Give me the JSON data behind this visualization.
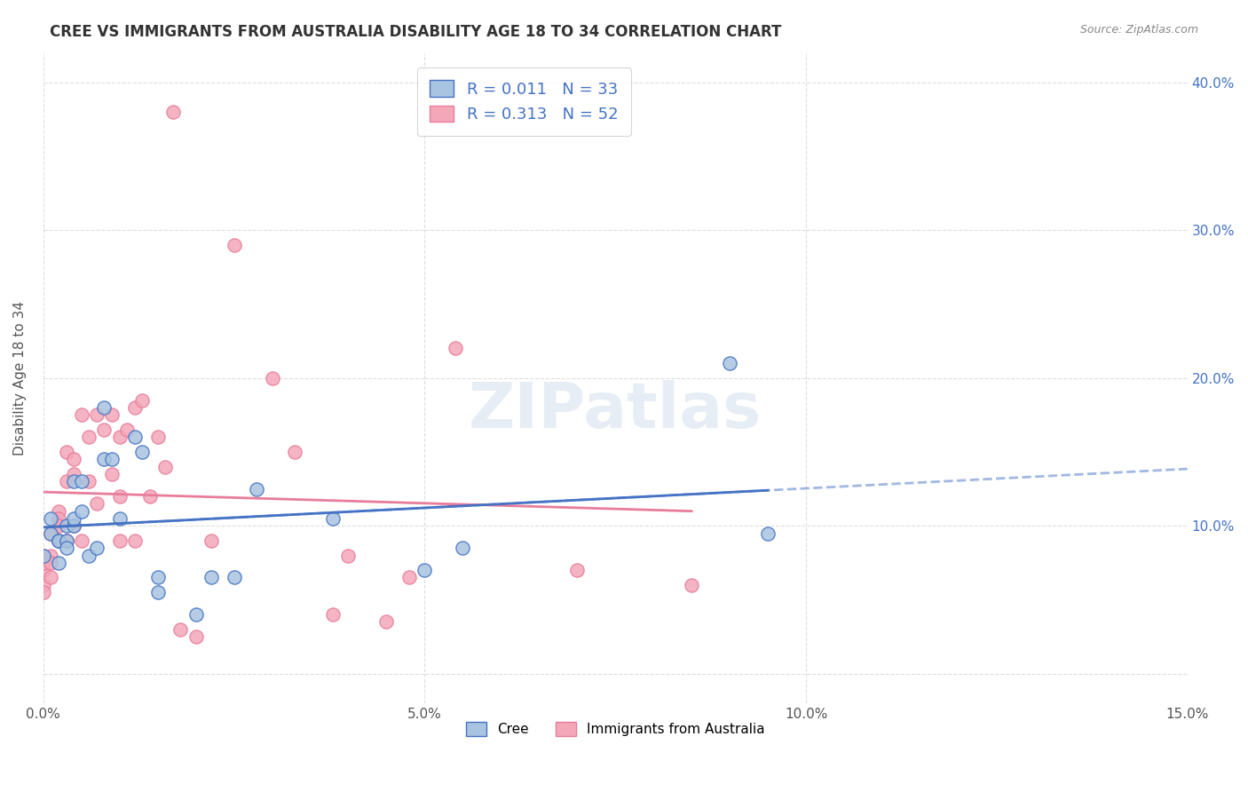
{
  "title": "CREE VS IMMIGRANTS FROM AUSTRALIA DISABILITY AGE 18 TO 34 CORRELATION CHART",
  "source": "Source: ZipAtlas.com",
  "ylabel": "Disability Age 18 to 34",
  "xlim": [
    0.0,
    0.15
  ],
  "ylim": [
    -0.02,
    0.42
  ],
  "yticks": [
    0.0,
    0.1,
    0.2,
    0.3,
    0.4
  ],
  "xticks": [
    0.0,
    0.05,
    0.1,
    0.15
  ],
  "xtick_labels": [
    "0.0%",
    "5.0%",
    "10.0%",
    "15.0%"
  ],
  "ytick_labels": [
    "",
    "10.0%",
    "20.0%",
    "30.0%",
    "40.0%"
  ],
  "cree_R": "0.011",
  "cree_N": "33",
  "aus_R": "0.313",
  "aus_N": "52",
  "cree_color": "#a8c4e0",
  "aus_color": "#f4a7b9",
  "cree_line_color": "#4472c4",
  "aus_line_color": "#e87d9a",
  "background_color": "#ffffff",
  "grid_color": "#d0d0d0",
  "cree_x": [
    0.0,
    0.001,
    0.001,
    0.002,
    0.002,
    0.002,
    0.003,
    0.003,
    0.003,
    0.004,
    0.004,
    0.004,
    0.005,
    0.005,
    0.006,
    0.007,
    0.008,
    0.008,
    0.009,
    0.01,
    0.012,
    0.013,
    0.015,
    0.015,
    0.02,
    0.022,
    0.025,
    0.028,
    0.038,
    0.05,
    0.055,
    0.09,
    0.095
  ],
  "cree_y": [
    0.08,
    0.095,
    0.105,
    0.075,
    0.09,
    0.09,
    0.1,
    0.09,
    0.085,
    0.13,
    0.1,
    0.105,
    0.11,
    0.13,
    0.08,
    0.085,
    0.145,
    0.18,
    0.145,
    0.105,
    0.16,
    0.15,
    0.065,
    0.055,
    0.04,
    0.065,
    0.065,
    0.125,
    0.105,
    0.07,
    0.085,
    0.21,
    0.095
  ],
  "aus_x": [
    0.0,
    0.0,
    0.0,
    0.0,
    0.0,
    0.001,
    0.001,
    0.001,
    0.001,
    0.002,
    0.002,
    0.002,
    0.002,
    0.003,
    0.003,
    0.003,
    0.004,
    0.004,
    0.004,
    0.005,
    0.005,
    0.006,
    0.006,
    0.007,
    0.007,
    0.008,
    0.009,
    0.009,
    0.01,
    0.01,
    0.01,
    0.011,
    0.012,
    0.012,
    0.013,
    0.014,
    0.015,
    0.016,
    0.017,
    0.018,
    0.02,
    0.022,
    0.025,
    0.03,
    0.033,
    0.038,
    0.04,
    0.045,
    0.048,
    0.054,
    0.07,
    0.085
  ],
  "aus_y": [
    0.07,
    0.08,
    0.075,
    0.06,
    0.055,
    0.095,
    0.08,
    0.075,
    0.065,
    0.11,
    0.105,
    0.1,
    0.09,
    0.15,
    0.13,
    0.09,
    0.145,
    0.135,
    0.1,
    0.175,
    0.09,
    0.16,
    0.13,
    0.175,
    0.115,
    0.165,
    0.175,
    0.135,
    0.16,
    0.12,
    0.09,
    0.165,
    0.18,
    0.09,
    0.185,
    0.12,
    0.16,
    0.14,
    0.38,
    0.03,
    0.025,
    0.09,
    0.29,
    0.2,
    0.15,
    0.04,
    0.08,
    0.035,
    0.065,
    0.22,
    0.07,
    0.06
  ]
}
